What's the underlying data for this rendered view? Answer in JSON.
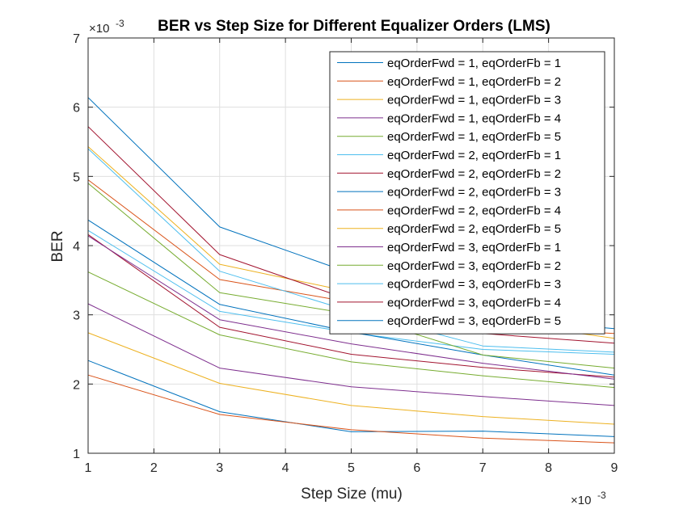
{
  "chart_data": {
    "type": "line",
    "title": "BER vs Step Size for Different Equalizer Orders (LMS)",
    "xlabel": "Step Size (mu)",
    "ylabel": "BER",
    "x_multiplier_label": "×10",
    "x_multiplier_exp": "-3",
    "y_multiplier_label": "×10",
    "y_multiplier_exp": "-3",
    "x": [
      1,
      3,
      5,
      7,
      9
    ],
    "xlim": [
      1,
      9
    ],
    "ylim": [
      1,
      7
    ],
    "xticks": [
      "1",
      "2",
      "3",
      "4",
      "5",
      "6",
      "7",
      "8",
      "9"
    ],
    "yticks": [
      "1",
      "2",
      "3",
      "4",
      "5",
      "6",
      "7"
    ],
    "grid": true,
    "legend_position": "top-right",
    "series": [
      {
        "name": "eqOrderFwd = 1, eqOrderFb = 1",
        "color": "#0072BD",
        "values": [
          2.34,
          1.6,
          1.31,
          1.32,
          1.24
        ]
      },
      {
        "name": "eqOrderFwd = 1, eqOrderFb = 2",
        "color": "#D95319",
        "values": [
          2.13,
          1.56,
          1.34,
          1.22,
          1.15
        ]
      },
      {
        "name": "eqOrderFwd = 1, eqOrderFb = 3",
        "color": "#EDB120",
        "values": [
          2.74,
          2.01,
          1.69,
          1.53,
          1.42
        ]
      },
      {
        "name": "eqOrderFwd = 1, eqOrderFb = 4",
        "color": "#7E2F8E",
        "values": [
          3.16,
          2.23,
          1.96,
          1.82,
          1.69
        ]
      },
      {
        "name": "eqOrderFwd = 1, eqOrderFb = 5",
        "color": "#77AC30",
        "values": [
          3.62,
          2.71,
          2.32,
          2.12,
          1.95
        ]
      },
      {
        "name": "eqOrderFwd = 2, eqOrderFb = 1",
        "color": "#4DBEEE",
        "values": [
          4.22,
          3.05,
          2.74,
          2.5,
          2.43
        ]
      },
      {
        "name": "eqOrderFwd = 2, eqOrderFb = 2",
        "color": "#A2142F",
        "values": [
          4.16,
          2.82,
          2.43,
          2.24,
          2.1
        ]
      },
      {
        "name": "eqOrderFwd = 2, eqOrderFb = 3",
        "color": "#0072BD",
        "values": [
          4.37,
          3.15,
          2.75,
          2.42,
          2.13
        ]
      },
      {
        "name": "eqOrderFwd = 2, eqOrderFb = 4",
        "color": "#D95319",
        "values": [
          4.95,
          3.51,
          3.18,
          2.83,
          2.73
        ]
      },
      {
        "name": "eqOrderFwd = 2, eqOrderFb = 5",
        "color": "#EDB120",
        "values": [
          5.43,
          3.73,
          3.33,
          2.93,
          2.66
        ]
      },
      {
        "name": "eqOrderFwd = 3, eqOrderFb = 1",
        "color": "#7E2F8E",
        "values": [
          4.14,
          2.93,
          2.58,
          2.3,
          2.07
        ]
      },
      {
        "name": "eqOrderFwd = 3, eqOrderFb = 2",
        "color": "#77AC30",
        "values": [
          4.9,
          3.32,
          3.01,
          2.42,
          2.23
        ]
      },
      {
        "name": "eqOrderFwd = 3, eqOrderFb = 3",
        "color": "#4DBEEE",
        "values": [
          5.4,
          3.63,
          3.05,
          2.55,
          2.46
        ]
      },
      {
        "name": "eqOrderFwd = 3, eqOrderFb = 4",
        "color": "#A2142F",
        "values": [
          5.72,
          3.87,
          3.21,
          2.73,
          2.59
        ]
      },
      {
        "name": "eqOrderFwd = 3, eqOrderFb = 5",
        "color": "#0072BD",
        "values": [
          6.14,
          4.27,
          3.6,
          2.96,
          2.8
        ]
      }
    ]
  }
}
